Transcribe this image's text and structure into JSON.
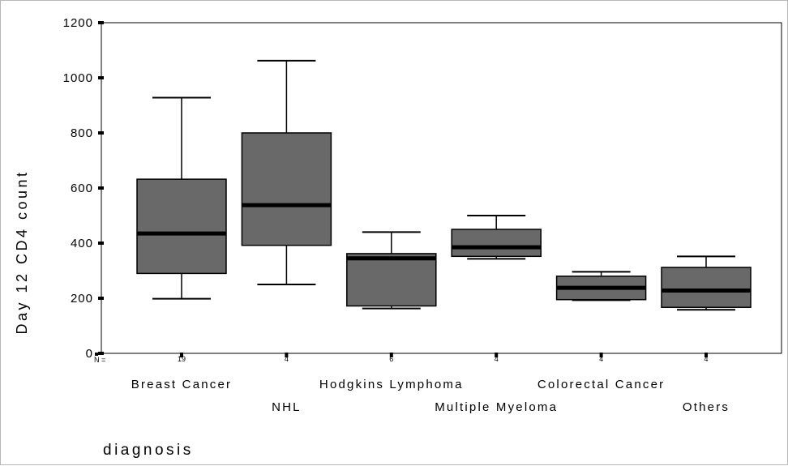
{
  "chart_data": {
    "type": "boxplot",
    "ylabel": "Day 12 CD4 count",
    "xlabel": "diagnosis",
    "ylim": [
      0,
      1200
    ],
    "yticks": [
      0,
      200,
      400,
      600,
      800,
      1000,
      1200
    ],
    "n_prefix": "N =",
    "box_color": "#696969",
    "categories": [
      "Breast Cancer",
      "NHL",
      "Hodgkins Lymphoma",
      "Multiple Myeloma",
      "Colorectal Cancer",
      "Others"
    ],
    "n_labels": [
      "19",
      "4",
      "6",
      "4",
      "4",
      "4"
    ],
    "series": [
      {
        "category": "Breast Cancer",
        "min": 198,
        "q1": 290,
        "median": 435,
        "q3": 632,
        "max": 928
      },
      {
        "category": "NHL",
        "min": 250,
        "q1": 392,
        "median": 538,
        "q3": 800,
        "max": 1062
      },
      {
        "category": "Hodgkins Lymphoma",
        "min": 163,
        "q1": 172,
        "median": 345,
        "q3": 362,
        "max": 440
      },
      {
        "category": "Multiple Myeloma",
        "min": 343,
        "q1": 352,
        "median": 385,
        "q3": 450,
        "max": 500
      },
      {
        "category": "Colorectal Cancer",
        "min": 193,
        "q1": 195,
        "median": 238,
        "q3": 280,
        "max": 296
      },
      {
        "category": "Others",
        "min": 158,
        "q1": 167,
        "median": 228,
        "q3": 312,
        "max": 352
      }
    ]
  }
}
